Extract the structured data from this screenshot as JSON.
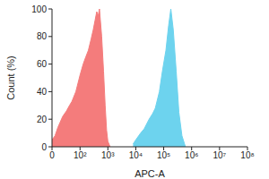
{
  "chart_data": {
    "type": "area",
    "x_label": "APC-A",
    "y_label": "Count (%)",
    "log": "x",
    "xlim": [
      0,
      100000000
    ],
    "xticks": [
      0,
      {
        "value": 100,
        "label": "10²"
      },
      {
        "value": 1000,
        "label": "10³"
      },
      {
        "value": 10000,
        "label": "10⁴"
      },
      {
        "value": 100000,
        "label": "10⁵"
      },
      {
        "value": 1000000,
        "label": "10⁶"
      },
      {
        "value": 10000000,
        "label": "10⁷"
      },
      {
        "value": 100000000,
        "label": "10⁸"
      }
    ],
    "ylim": [
      0,
      100
    ],
    "yticks": [
      0,
      20,
      40,
      60,
      80,
      100
    ],
    "grid": false,
    "series": [
      {
        "color": "#f47c7c",
        "x": [
          0,
          5,
          10,
          20,
          30,
          40,
          50,
          70,
          100,
          130,
          160,
          200,
          250,
          300,
          350,
          400,
          450,
          500,
          600,
          700,
          800,
          900,
          1000,
          1200
        ],
        "values": [
          5,
          8,
          14,
          22,
          26,
          30,
          33,
          40,
          52,
          60,
          65,
          70,
          78,
          85,
          92,
          98,
          95,
          100,
          80,
          55,
          30,
          12,
          4,
          0
        ]
      },
      {
        "color": "#6dd3ee",
        "x": [
          8000,
          10000,
          15000,
          20000,
          30000,
          40000,
          50000,
          70000,
          90000,
          120000,
          150000,
          180000,
          220000,
          280000,
          350000,
          450000,
          600000
        ],
        "values": [
          2,
          5,
          10,
          13,
          20,
          24,
          28,
          40,
          55,
          70,
          88,
          100,
          85,
          55,
          25,
          8,
          0
        ]
      }
    ]
  }
}
